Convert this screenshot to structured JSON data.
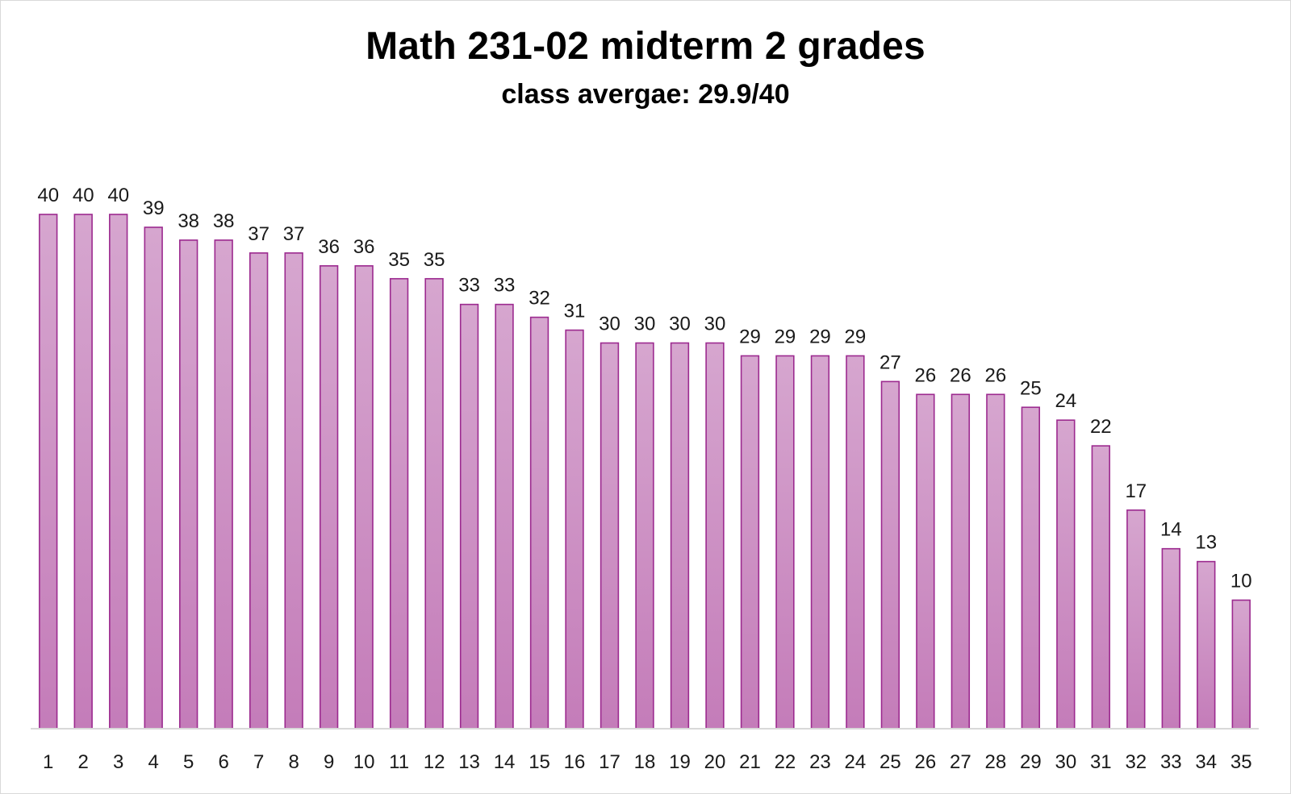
{
  "chart_data": {
    "type": "bar",
    "title": "Math 231-02 midterm 2 grades",
    "subtitle": "class avergae: 29.9/40",
    "xlabel": "",
    "ylabel": "",
    "ylim": [
      0,
      40
    ],
    "grid": false,
    "legend": "none",
    "categories": [
      "1",
      "2",
      "3",
      "4",
      "5",
      "6",
      "7",
      "8",
      "9",
      "10",
      "11",
      "12",
      "13",
      "14",
      "15",
      "16",
      "17",
      "18",
      "19",
      "20",
      "21",
      "22",
      "23",
      "24",
      "25",
      "26",
      "27",
      "28",
      "29",
      "30",
      "31",
      "32",
      "33",
      "34",
      "35"
    ],
    "values": [
      40,
      40,
      40,
      39,
      38,
      38,
      37,
      37,
      36,
      36,
      35,
      35,
      33,
      33,
      32,
      31,
      30,
      30,
      30,
      30,
      29,
      29,
      29,
      29,
      27,
      26,
      26,
      26,
      25,
      24,
      22,
      17,
      14,
      13,
      10
    ],
    "bar_color": "#c77fbb",
    "bar_edge_color": "#9c2a8f"
  }
}
